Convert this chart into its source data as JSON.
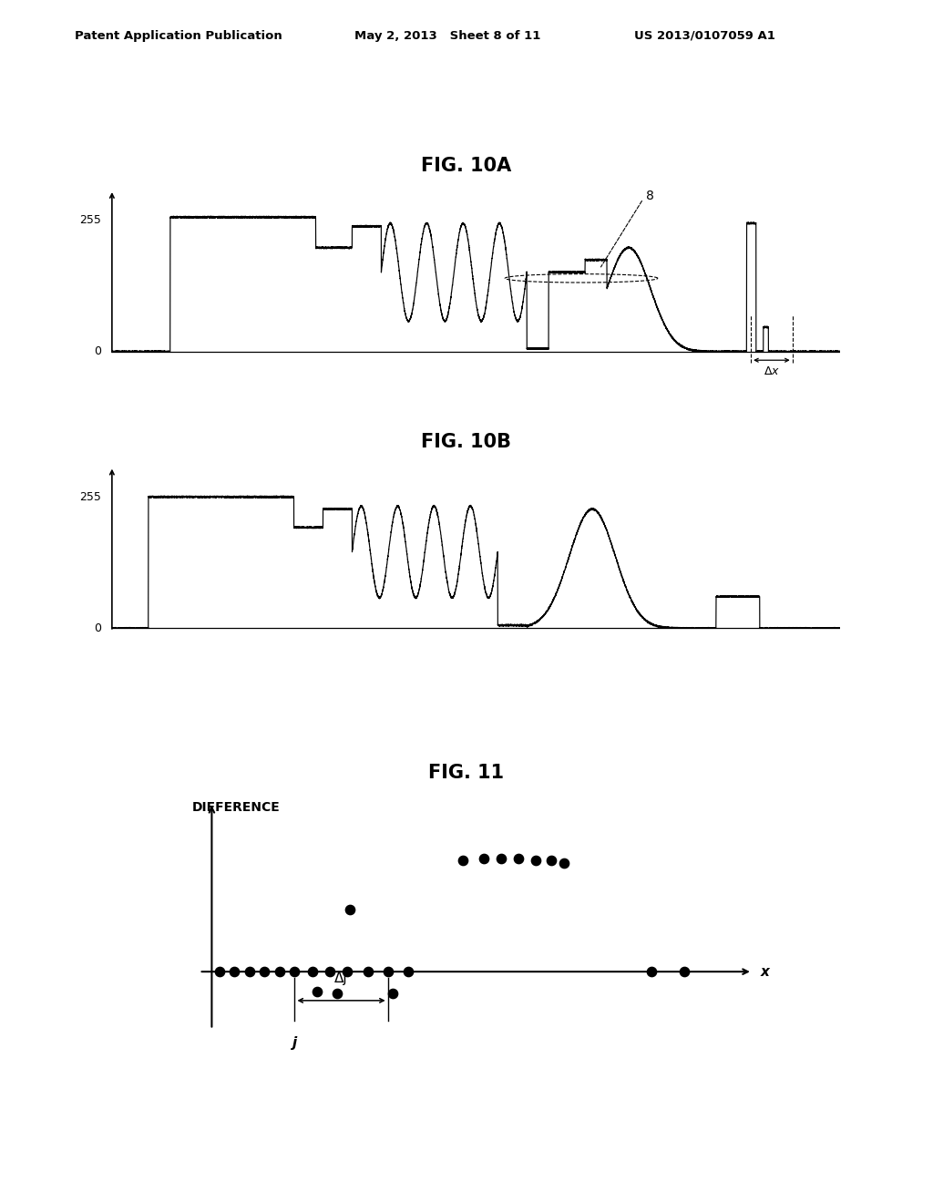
{
  "bg_color": "#ffffff",
  "header_left": "Patent Application Publication",
  "header_mid": "May 2, 2013   Sheet 8 of 11",
  "header_right": "US 2013/0107059 A1",
  "fig10a_title": "FIG. 10A",
  "fig10b_title": "FIG. 10B",
  "fig11_title": "FIG. 11",
  "fig11_ylabel": "DIFFERENCE",
  "fig11_xlabel": "x",
  "fig11_j_label": "j",
  "fig11_delta_label": "Δj",
  "fig10_delta_label": "Δx",
  "label_8": "8",
  "ytick_255": "255",
  "ytick_0": "0"
}
